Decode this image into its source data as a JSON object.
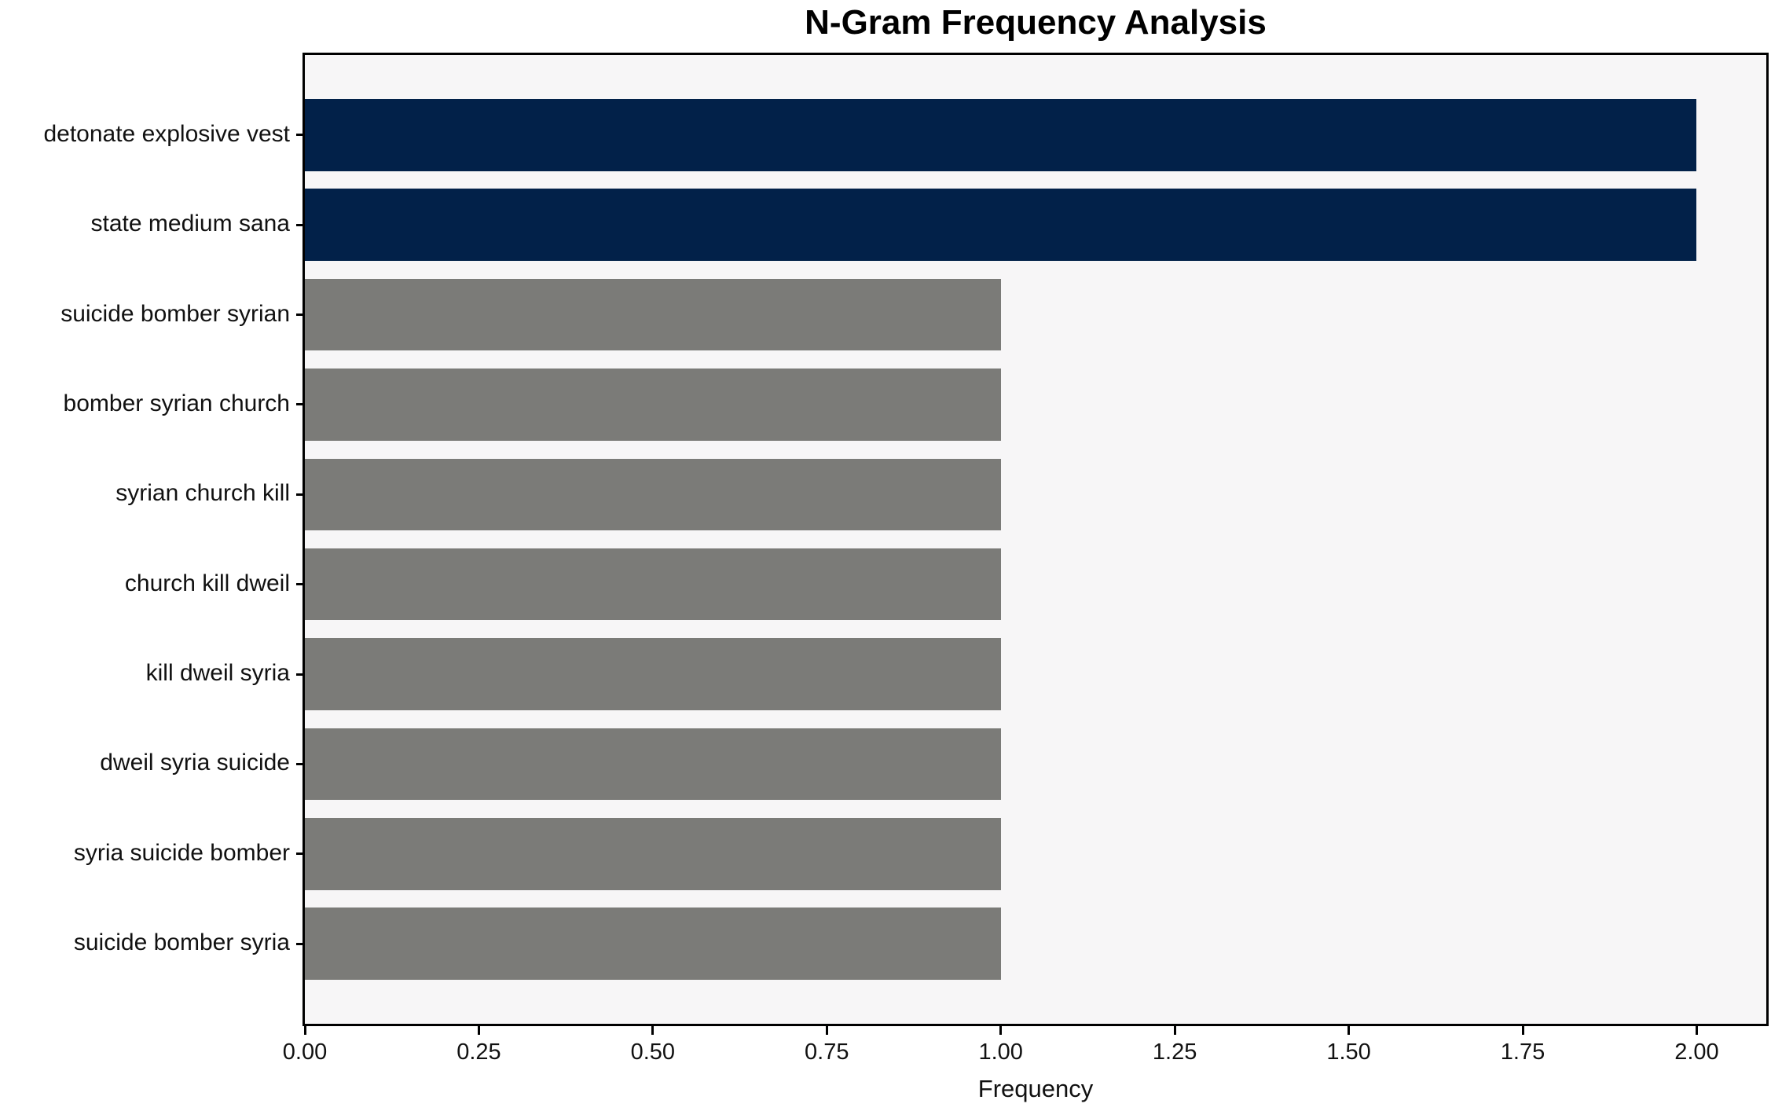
{
  "chart_data": {
    "type": "bar",
    "orientation": "horizontal",
    "title": "N-Gram Frequency Analysis",
    "xlabel": "Frequency",
    "ylabel": "",
    "categories": [
      "detonate explosive vest",
      "state medium sana",
      "suicide bomber syrian",
      "bomber syrian church",
      "syrian church kill",
      "church kill dweil",
      "kill dweil syria",
      "dweil syria suicide",
      "syria suicide bomber",
      "suicide bomber syria"
    ],
    "values": [
      2,
      2,
      1,
      1,
      1,
      1,
      1,
      1,
      1,
      1
    ],
    "bar_colors": [
      "#022149",
      "#022149",
      "#7b7b78",
      "#7b7b78",
      "#7b7b78",
      "#7b7b78",
      "#7b7b78",
      "#7b7b78",
      "#7b7b78",
      "#7b7b78"
    ],
    "xlim": [
      0,
      2.1
    ],
    "x_ticks": [
      {
        "value": 0.0,
        "label": "0.00"
      },
      {
        "value": 0.25,
        "label": "0.25"
      },
      {
        "value": 0.5,
        "label": "0.50"
      },
      {
        "value": 0.75,
        "label": "0.75"
      },
      {
        "value": 1.0,
        "label": "1.00"
      },
      {
        "value": 1.25,
        "label": "1.25"
      },
      {
        "value": 1.5,
        "label": "1.50"
      },
      {
        "value": 1.75,
        "label": "1.75"
      },
      {
        "value": 2.0,
        "label": "2.00"
      }
    ],
    "grid": false,
    "legend": null,
    "colors": {
      "highlight_bar": "#022149",
      "default_bar": "#7b7b78",
      "plot_background": "#f7f6f7",
      "figure_background": "#ffffff",
      "spine": "#000000",
      "text": "#111111"
    }
  }
}
